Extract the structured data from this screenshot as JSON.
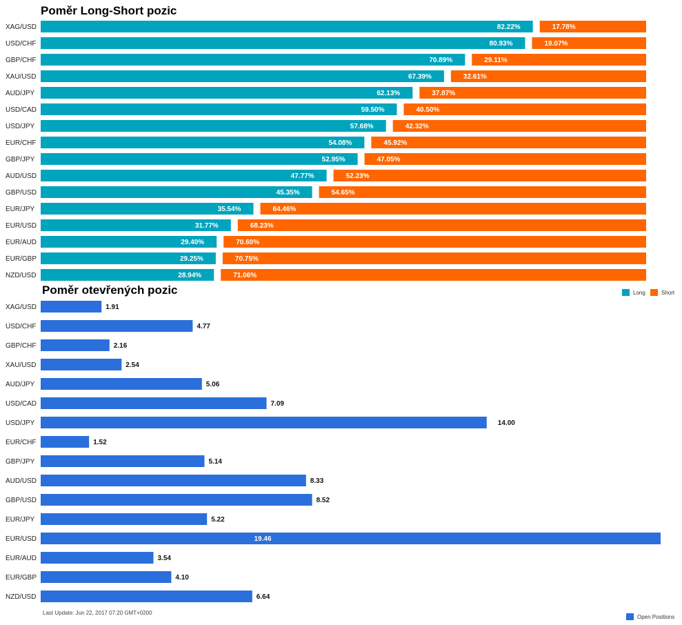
{
  "colors": {
    "long": "#00a4bd",
    "short": "#ff6600",
    "open": "#2a6fdb"
  },
  "chart_data": [
    {
      "type": "bar",
      "orientation": "horizontal",
      "stacked": "100%",
      "title": "Poměr Long-Short pozic",
      "categories": [
        "XAG/USD",
        "USD/CHF",
        "GBP/CHF",
        "XAU/USD",
        "AUD/JPY",
        "USD/CAD",
        "USD/JPY",
        "EUR/CHF",
        "GBP/JPY",
        "AUD/USD",
        "GBP/USD",
        "EUR/JPY",
        "EUR/USD",
        "EUR/AUD",
        "EUR/GBP",
        "NZD/USD"
      ],
      "series": [
        {
          "name": "Long",
          "values": [
            82.22,
            80.93,
            70.89,
            67.39,
            62.13,
            59.5,
            57.68,
            54.08,
            52.95,
            47.77,
            45.35,
            35.54,
            31.77,
            29.4,
            29.25,
            28.94
          ]
        },
        {
          "name": "Short",
          "values": [
            17.78,
            19.07,
            29.11,
            32.61,
            37.87,
            40.5,
            42.32,
            45.92,
            47.05,
            52.23,
            54.65,
            64.46,
            68.23,
            70.6,
            70.75,
            71.06
          ]
        }
      ],
      "labels": {
        "long": [
          "82.22%",
          "80.93%",
          "70.89%",
          "67.39%",
          "62.13%",
          "59.50%",
          "57.68%",
          "54.08%",
          "52.95%",
          "47.77%",
          "45.35%",
          "35.54%",
          "31.77%",
          "29.40%",
          "29.25%",
          "28.94%"
        ],
        "short": [
          "17.78%",
          "19.07%",
          "29.11%",
          "32.61%",
          "37.87%",
          "40.50%",
          "42.32%",
          "45.92%",
          "47.05%",
          "52.23%",
          "54.65%",
          "64.46%",
          "68.23%",
          "70.60%",
          "70.75%",
          "71.06%"
        ]
      },
      "legend_position": "bottom-right"
    },
    {
      "type": "bar",
      "orientation": "horizontal",
      "title": "Poměr otevřených pozic",
      "categories": [
        "XAG/USD",
        "USD/CHF",
        "GBP/CHF",
        "XAU/USD",
        "AUD/JPY",
        "USD/CAD",
        "USD/JPY",
        "EUR/CHF",
        "GBP/JPY",
        "AUD/USD",
        "GBP/USD",
        "EUR/JPY",
        "EUR/USD",
        "EUR/AUD",
        "EUR/GBP",
        "NZD/USD"
      ],
      "series": [
        {
          "name": "Open Positions",
          "values": [
            1.91,
            4.77,
            2.16,
            2.54,
            5.06,
            7.09,
            14.0,
            1.52,
            5.14,
            8.33,
            8.52,
            5.22,
            19.46,
            3.54,
            4.1,
            6.64
          ]
        }
      ],
      "labels": [
        "1.91",
        "4.77",
        "2.16",
        "2.54",
        "5.06",
        "7.09",
        "14.00",
        "1.52",
        "5.14",
        "8.33",
        "8.52",
        "5.22",
        "19.46",
        "3.54",
        "4.10",
        "6.64"
      ],
      "xlim": [
        0,
        19.46
      ],
      "legend_position": "bottom-right"
    }
  ],
  "legend_ls": {
    "long": "Long",
    "short": "Short"
  },
  "legend_op": {
    "open": "Open Positions"
  },
  "footer": {
    "last_update": "Last Update: Jun 22, 2017 07:20 GMT+0200"
  }
}
